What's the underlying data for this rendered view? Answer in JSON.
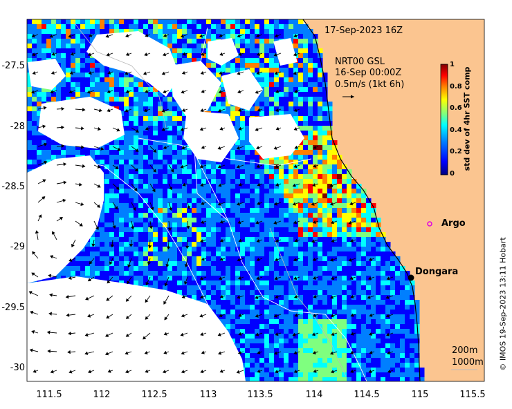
{
  "map": {
    "date_label": "17-Sep-2023 16Z",
    "current_product": "NRT00 GSL",
    "current_time": "16-Sep 00:00Z",
    "current_scale": "0.5m/s (1kt 6h)",
    "colorbar": {
      "title": "std dev of 4hr SST comp",
      "ticks": [
        "1",
        "0.8",
        "0.6",
        "0.4",
        "0.2",
        "0"
      ],
      "colors": [
        "#00007f",
        "#0000ff",
        "#007fff",
        "#00ffff",
        "#7fff7f",
        "#ffff00",
        "#ff7f00",
        "#ff0000",
        "#7f0000"
      ]
    },
    "x_ticks": [
      "111.5",
      "112",
      "112.5",
      "113",
      "113.5",
      "114",
      "114.5",
      "115",
      "115.5"
    ],
    "y_ticks": [
      "-27.5",
      "-28",
      "-28.5",
      "-29",
      "-29.5",
      "-30"
    ],
    "places": [
      {
        "name": "Argo",
        "marker": "magenta-circle"
      },
      {
        "name": "Dongara",
        "marker": "black-dot"
      }
    ],
    "isobaths": [
      "200m",
      "1000m"
    ],
    "credit": "© IMOS 19-Sep-2023 13:11 Hobart",
    "colors": {
      "land": "#fbc590",
      "ocean_low": "#00007f",
      "ocean_high": "#7f0000"
    }
  }
}
